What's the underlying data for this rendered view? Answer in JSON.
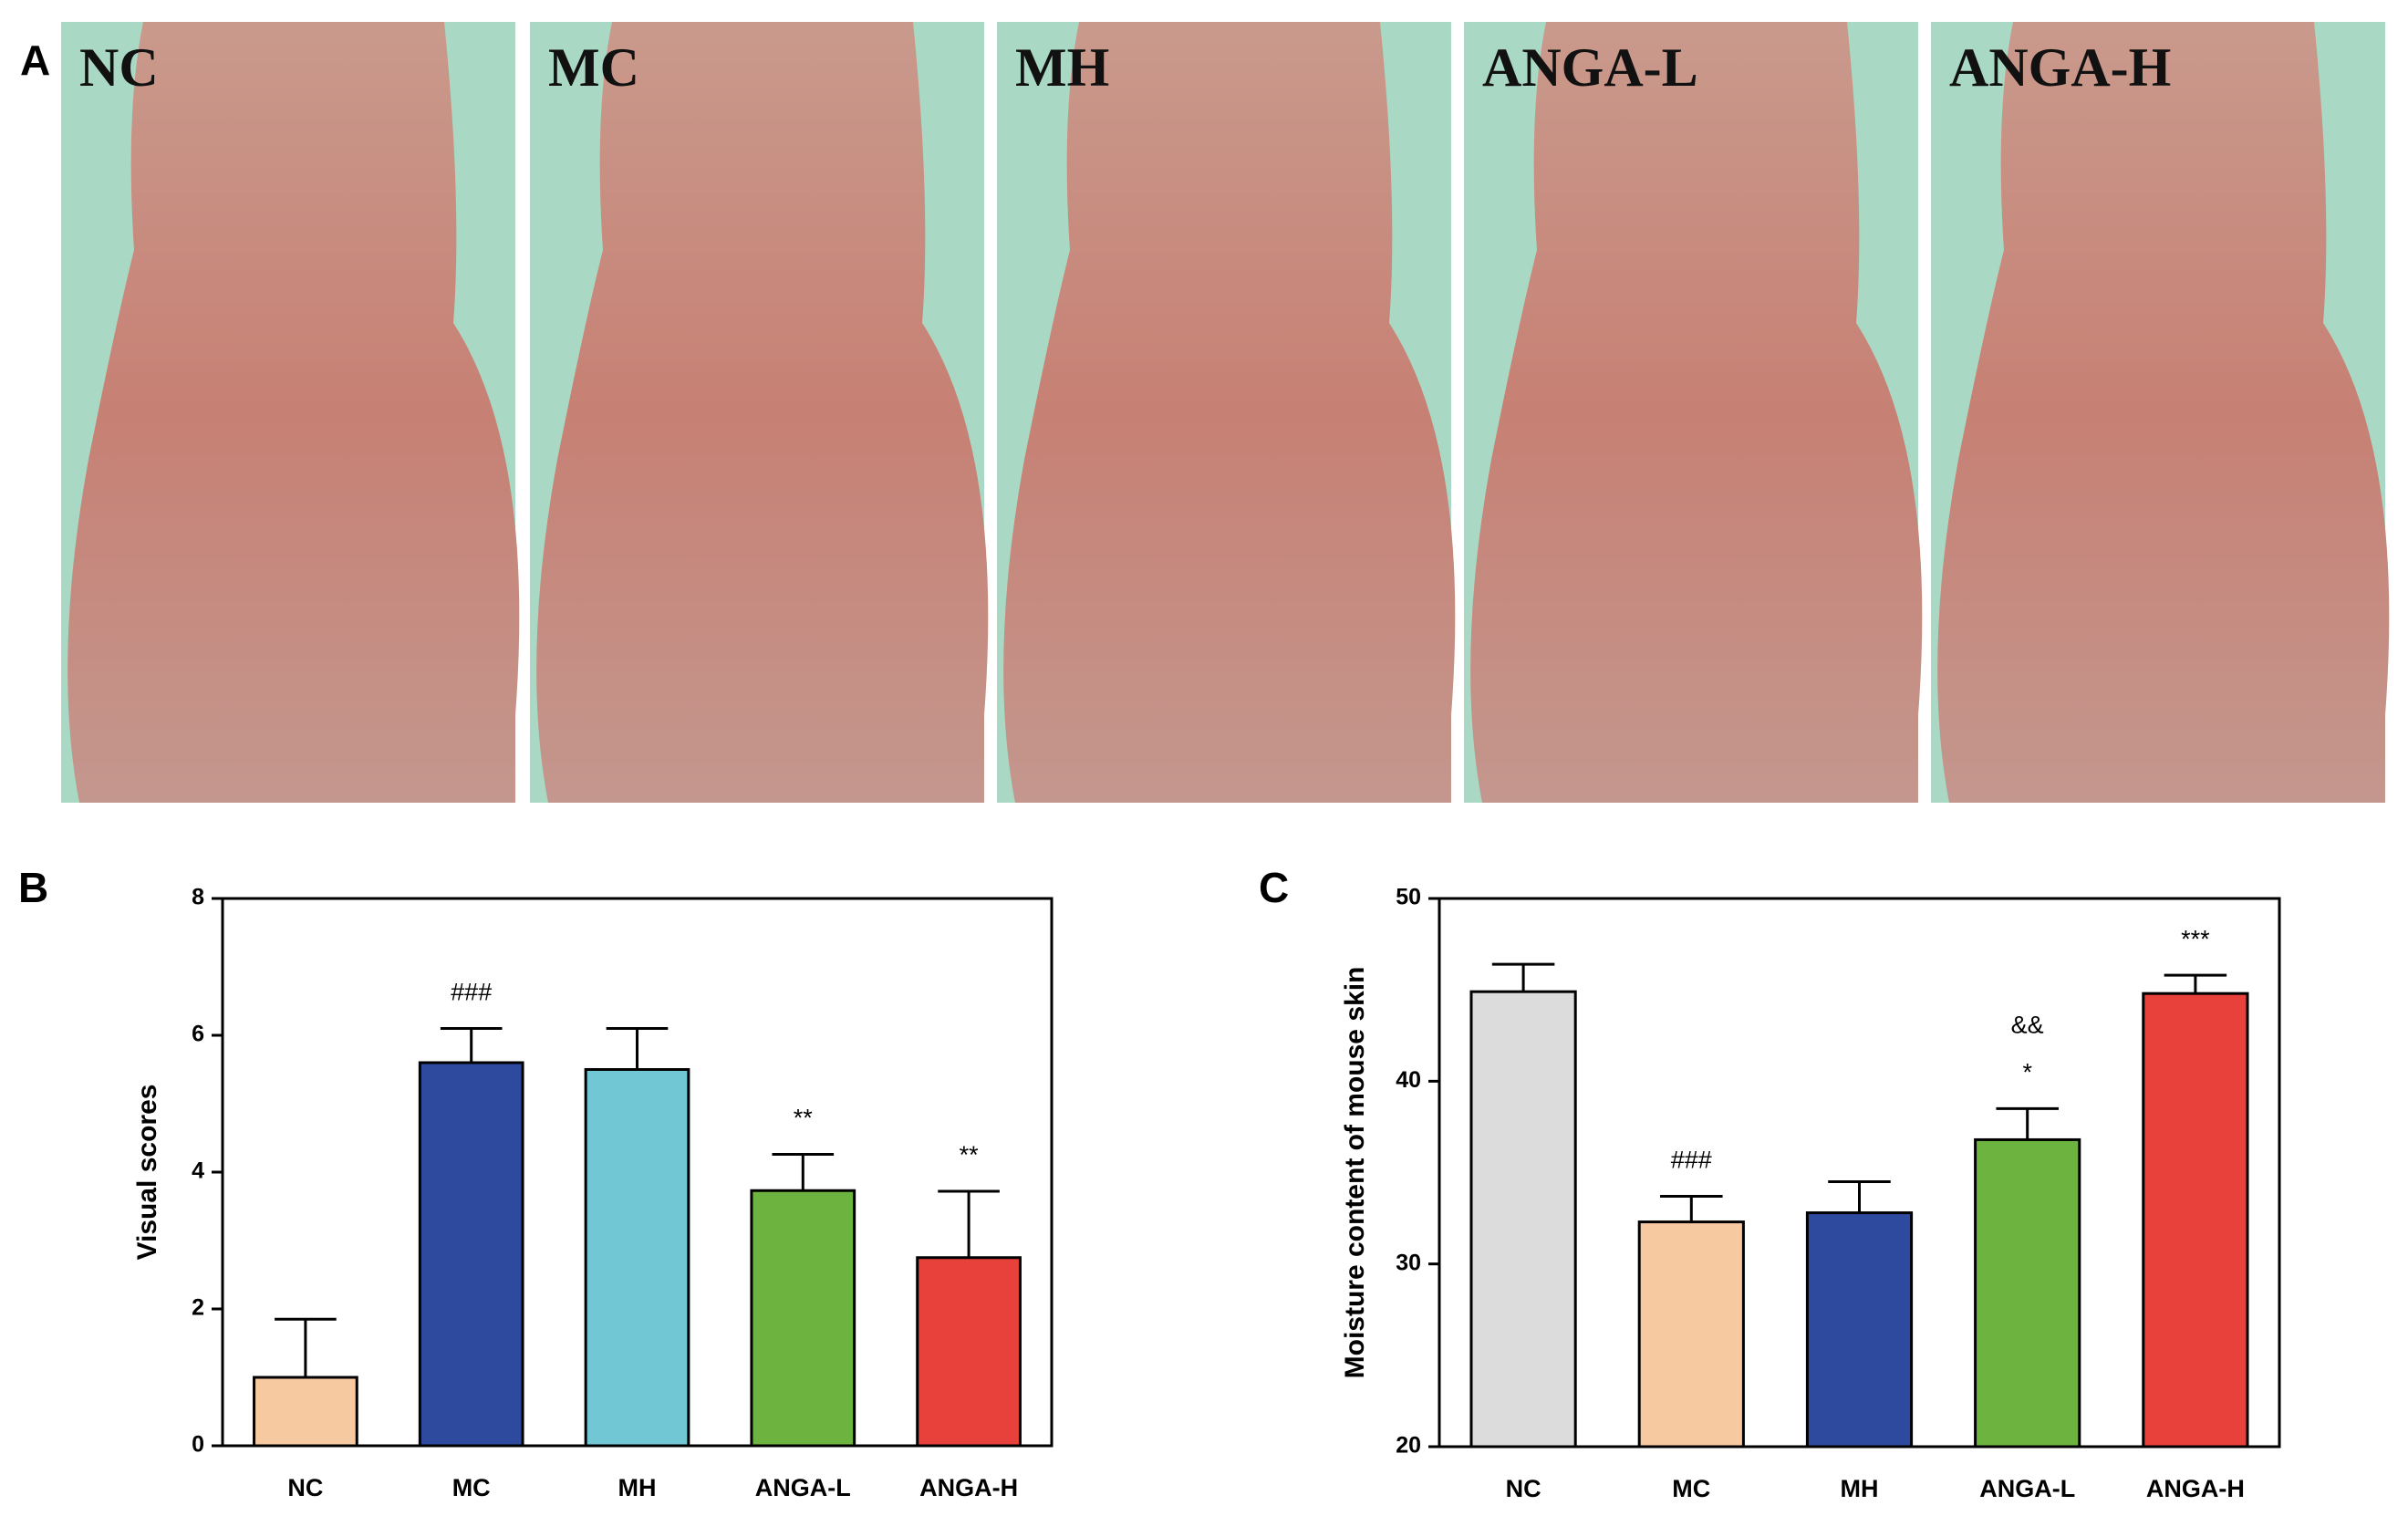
{
  "panel_a": {
    "panel": "A",
    "photos": [
      "NC",
      "MC",
      "MH",
      "ANGA-L",
      "ANGA-H"
    ]
  },
  "chart_data": [
    {
      "type": "bar",
      "panel": "B",
      "y_label": "Visual scores",
      "categories": [
        "NC",
        "MC",
        "MH",
        "ANGA-L",
        "ANGA-H"
      ],
      "values": [
        1.0,
        5.6,
        5.5,
        3.73,
        2.75
      ],
      "errors": [
        0.85,
        0.5,
        0.6,
        0.53,
        0.97
      ],
      "colors": [
        "#f6c9a0",
        "#2e4a9e",
        "#72c7d4",
        "#6cb33f",
        "#e8403a"
      ],
      "annotations": [
        null,
        [
          "###"
        ],
        null,
        [
          "**"
        ],
        [
          "**"
        ]
      ],
      "ylim": [
        0,
        8
      ],
      "yticks": [
        0,
        2,
        4,
        6,
        8
      ]
    },
    {
      "type": "bar",
      "panel": "C",
      "y_label": "Moisture content of mouse skin",
      "categories": [
        "NC",
        "MC",
        "MH",
        "ANGA-L",
        "ANGA-H"
      ],
      "values": [
        44.9,
        32.3,
        32.8,
        36.8,
        44.8
      ],
      "errors": [
        1.5,
        1.4,
        1.7,
        1.7,
        1.0
      ],
      "colors": [
        "#dcdcdc",
        "#f6c9a0",
        "#2e4a9e",
        "#6cb33f",
        "#e8403a"
      ],
      "annotations": [
        null,
        [
          "###"
        ],
        null,
        [
          "&&",
          "*"
        ],
        [
          "***"
        ]
      ],
      "ylim": [
        20,
        50
      ],
      "yticks": [
        20,
        30,
        40,
        50
      ]
    }
  ]
}
